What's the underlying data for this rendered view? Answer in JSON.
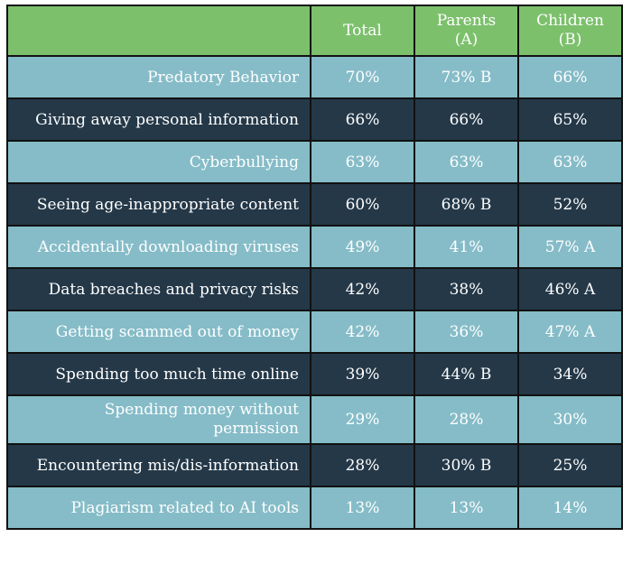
{
  "header": {
    "corner": "",
    "total": "Total",
    "parents_line1": "Parents",
    "parents_line2": "(A)",
    "children_line1": "Children",
    "children_line2": "(B)"
  },
  "colors": {
    "header_green": "#7cc06c",
    "row_light": "#85bcc8",
    "row_dark": "#243848",
    "border": "#111111",
    "text": "#ffffff"
  },
  "rows": [
    {
      "label": "Predatory Behavior",
      "total": "70%",
      "parents": "73% B",
      "children": "66%"
    },
    {
      "label": "Giving away personal information",
      "total": "66%",
      "parents": "66%",
      "children": "65%"
    },
    {
      "label": "Cyberbullying",
      "total": "63%",
      "parents": "63%",
      "children": "63%"
    },
    {
      "label": "Seeing age-inappropriate content",
      "total": "60%",
      "parents": "68% B",
      "children": "52%"
    },
    {
      "label": "Accidentally downloading viruses",
      "total": "49%",
      "parents": "41%",
      "children": "57% A"
    },
    {
      "label": "Data breaches and privacy risks",
      "total": "42%",
      "parents": "38%",
      "children": "46% A"
    },
    {
      "label": "Getting scammed out of money",
      "total": "42%",
      "parents": "36%",
      "children": "47% A"
    },
    {
      "label": "Spending too much time online",
      "total": "39%",
      "parents": "44% B",
      "children": "34%"
    },
    {
      "label": "Spending money without permission",
      "total": "29%",
      "parents": "28%",
      "children": "30%"
    },
    {
      "label": "Encountering mis/dis-information",
      "total": "28%",
      "parents": "30% B",
      "children": "25%"
    },
    {
      "label": "Plagiarism related to AI tools",
      "total": "13%",
      "parents": "13%",
      "children": "14%"
    }
  ]
}
